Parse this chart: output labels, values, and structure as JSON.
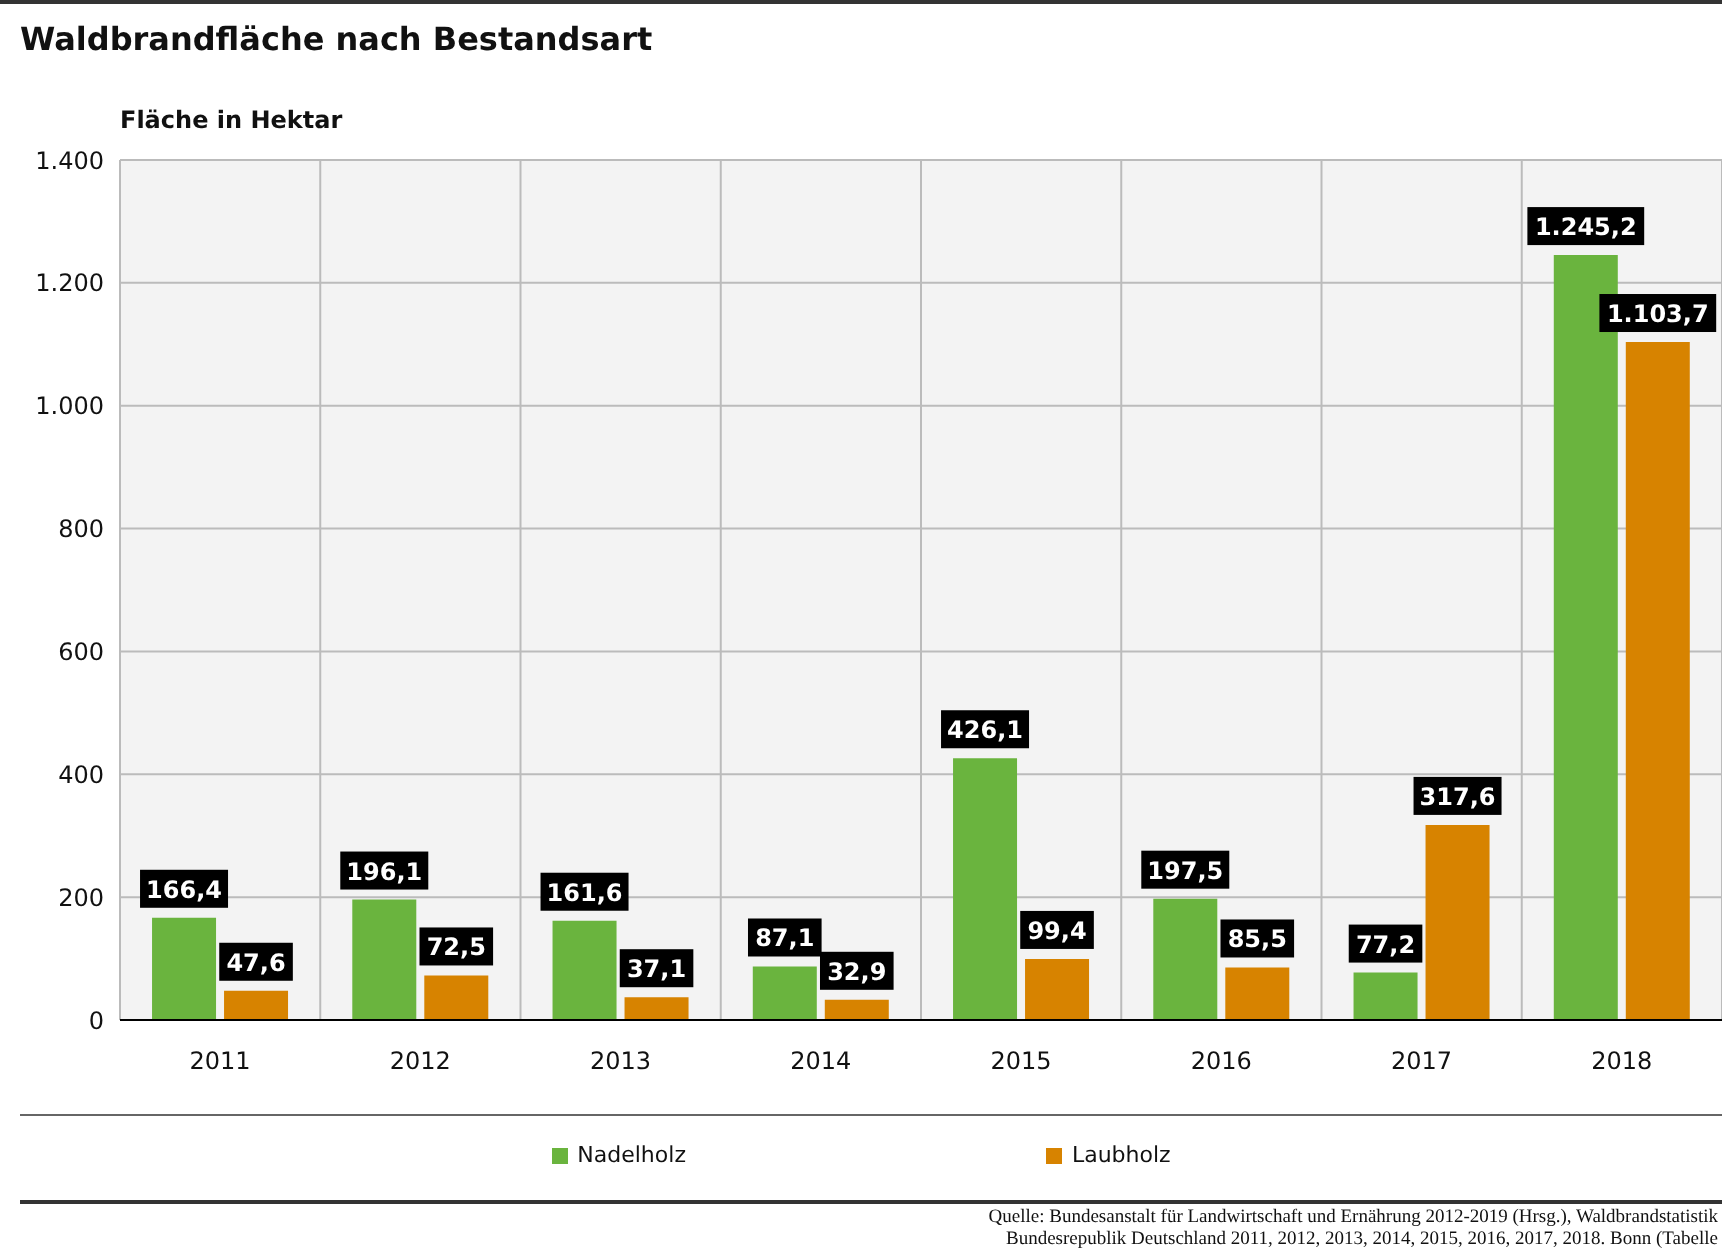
{
  "chart_data": {
    "type": "bar",
    "title": "Waldbrandfläche nach Bestandsart",
    "ylabel": "Fläche in Hektar",
    "categories": [
      "2011",
      "2012",
      "2013",
      "2014",
      "2015",
      "2016",
      "2017",
      "2018"
    ],
    "series": [
      {
        "name": "Nadelholz",
        "color": "#6ab43e",
        "values": [
          166.4,
          196.1,
          161.6,
          87.1,
          426.1,
          197.5,
          77.2,
          1245.2
        ],
        "value_labels": [
          "166,4",
          "196,1",
          "161,6",
          "87,1",
          "426,1",
          "197,5",
          "77,2",
          "1.245,2"
        ]
      },
      {
        "name": "Laubholz",
        "color": "#d78300",
        "values": [
          47.6,
          72.5,
          37.1,
          32.9,
          99.4,
          85.5,
          317.6,
          1103.7
        ],
        "value_labels": [
          "47,6",
          "72,5",
          "37,1",
          "32,9",
          "99,4",
          "85,5",
          "317,6",
          "1.103,7"
        ]
      }
    ],
    "ylim": [
      0,
      1400
    ],
    "yticks": [
      0,
      200,
      400,
      600,
      800,
      {
        "value": 1000,
        "label": "1.000"
      },
      {
        "value": 1200,
        "label": "1.200"
      },
      {
        "value": 1400,
        "label": "1.400"
      }
    ],
    "grid": true,
    "legend": "bottom",
    "annotations": [
      "Quelle: Bundesanstalt für Landwirtschaft und Ernährung 2012-2019 (Hrsg.), Waldbrandstatistik",
      "Bundesrepublik Deutschland 2011, 2012, 2013, 2014, 2015, 2016, 2017, 2018. Bonn (Tabelle"
    ]
  }
}
